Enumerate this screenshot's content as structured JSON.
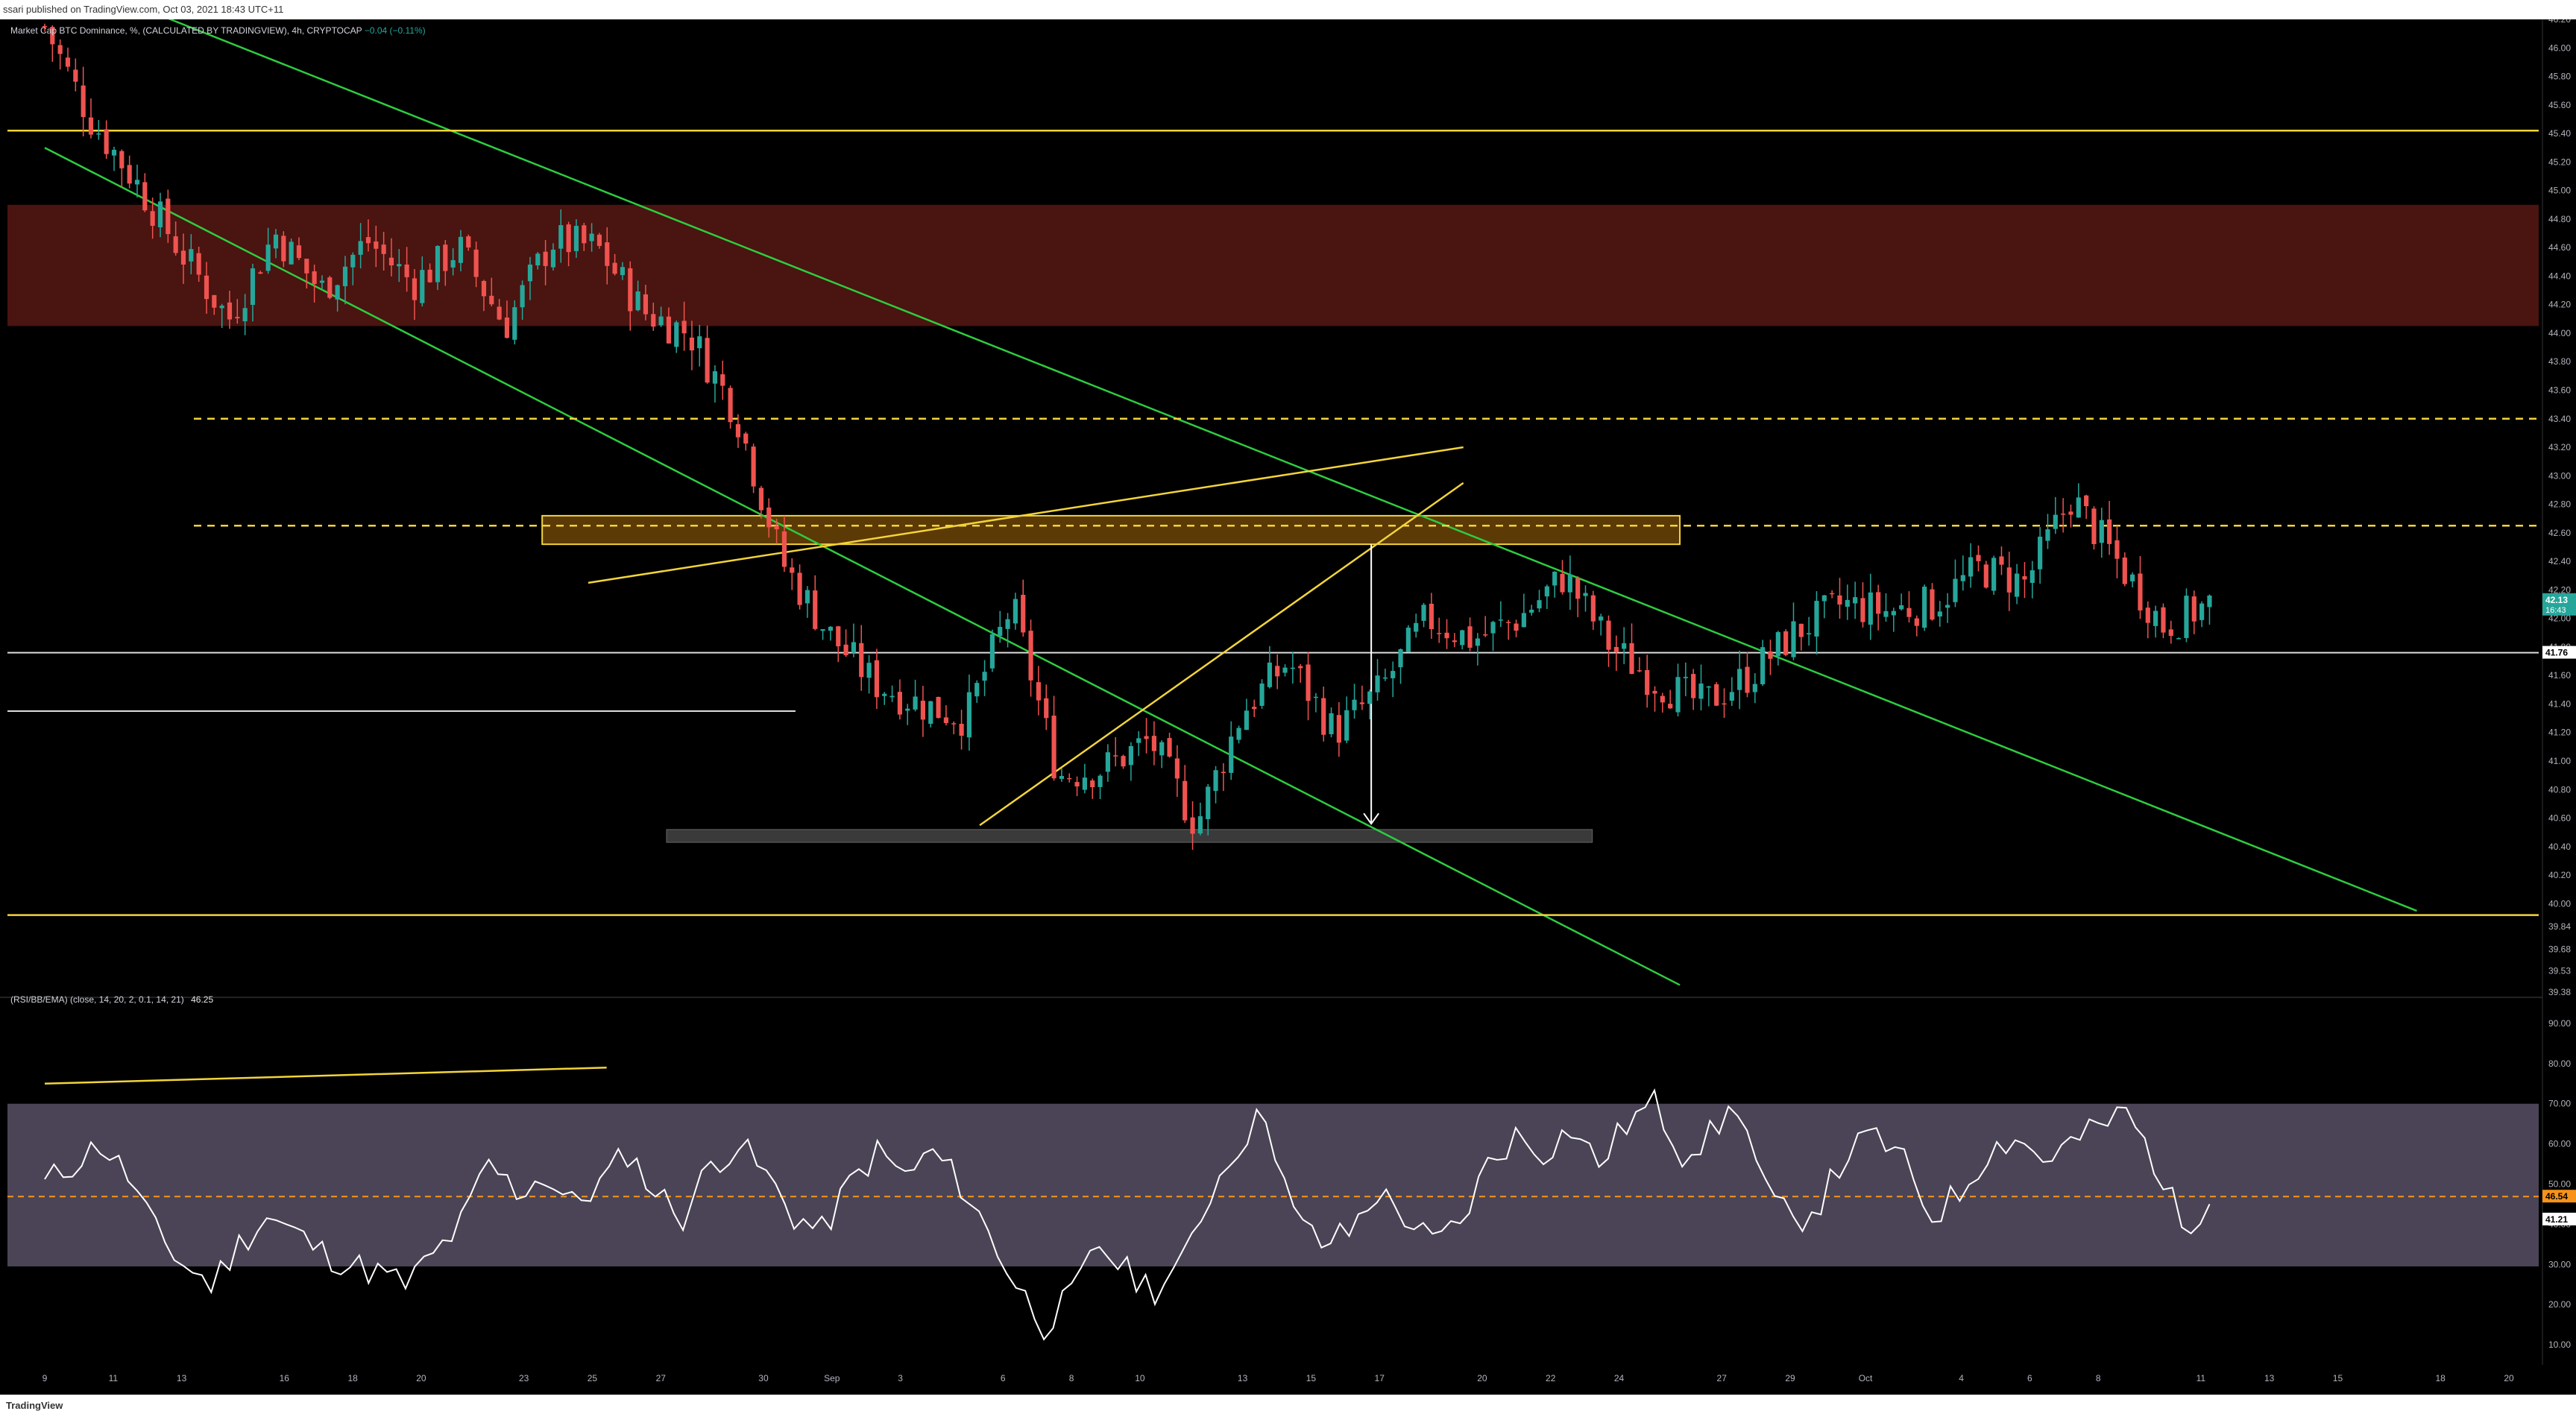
{
  "header": {
    "publish_text": "ssari published on TradingView.com, Oct 03, 2021 18:43 UTC+11"
  },
  "legend": {
    "title": "Market Cap BTC Dominance, %, (CALCULATED BY TRADINGVIEW), 4h, CRYPTOCAP",
    "change": "−0.04 (−0.11%)"
  },
  "rsi_legend": {
    "label": "(RSI/BB/EMA) (close, 14, 20, 2, 0.1, 14, 21)",
    "value": "46.25"
  },
  "footer": {
    "brand": "TradingView"
  },
  "colors": {
    "up": "#26a69a",
    "down": "#ef5350",
    "green_line": "#2ecc40",
    "yellow": "#f2d43b",
    "resistance_zone": "#4a1410",
    "orange_box": "#5c3a06",
    "grey_box": "#3a3a3a",
    "rsi_band": "#4a4456",
    "rsi_line": "#ffffff",
    "rsi_mid": "#f7931a"
  },
  "chart_data": [
    {
      "type": "candlestick",
      "title": "Market Cap BTC Dominance, %, (CALCULATED BY TRADINGVIEW), 4h, CRYPTOCAP",
      "x_tick_labels": [
        "9",
        "11",
        "13",
        "16",
        "18",
        "20",
        "23",
        "25",
        "27",
        "30",
        "Sep",
        "3",
        "6",
        "8",
        "10",
        "13",
        "15",
        "17",
        "20",
        "22",
        "24",
        "27",
        "29",
        "Oct",
        "4",
        "6",
        "8",
        "11",
        "13",
        "15",
        "18",
        "20"
      ],
      "y_tick_labels": [
        "46.20",
        "46.00",
        "45.80",
        "45.60",
        "45.40",
        "45.20",
        "45.00",
        "44.80",
        "44.60",
        "44.40",
        "44.20",
        "44.00",
        "43.80",
        "43.60",
        "43.40",
        "43.20",
        "43.00",
        "42.80",
        "42.60",
        "42.40",
        "42.20",
        "42.00",
        "41.80",
        "41.60",
        "41.40",
        "41.20",
        "41.00",
        "40.80",
        "40.60",
        "40.40",
        "40.20",
        "40.00",
        "39.84",
        "39.68",
        "39.53",
        "39.38"
      ],
      "ylim": [
        39.38,
        46.2
      ],
      "price_labels": [
        {
          "value": 42.13,
          "text": "42.13",
          "subtext": "16:43",
          "color": "#26a69a"
        },
        {
          "value": 41.76,
          "text": "41.76",
          "color": "#ffffff"
        }
      ],
      "x_days": [
        0,
        30.5
      ],
      "close_anchors": [
        [
          0.0,
          46.15
        ],
        [
          1.0,
          45.5
        ],
        [
          2.0,
          45.05
        ],
        [
          3.0,
          44.55
        ],
        [
          4.0,
          44.1
        ],
        [
          5.0,
          44.7
        ],
        [
          6.0,
          44.3
        ],
        [
          7.0,
          44.65
        ],
        [
          8.0,
          44.35
        ],
        [
          9.0,
          44.6
        ],
        [
          10.0,
          44.05
        ],
        [
          11.0,
          44.65
        ],
        [
          12.0,
          44.6
        ],
        [
          13.0,
          44.15
        ],
        [
          14.0,
          44.0
        ],
        [
          15.0,
          43.45
        ],
        [
          16.0,
          42.4
        ],
        [
          17.0,
          41.9
        ],
        [
          18.0,
          41.55
        ],
        [
          19.0,
          41.4
        ],
        [
          20.0,
          41.3
        ],
        [
          21.0,
          42.1
        ],
        [
          22.0,
          40.9
        ],
        [
          23.0,
          40.95
        ],
        [
          24.0,
          41.15
        ],
        [
          25.0,
          40.55
        ],
        [
          26.0,
          41.35
        ],
        [
          27.0,
          41.7
        ],
        [
          28.0,
          41.2
        ],
        [
          29.0,
          41.5
        ],
        [
          30.0,
          42.0
        ],
        [
          31.0,
          41.85
        ],
        [
          32.0,
          42.0
        ],
        [
          33.0,
          42.3
        ],
        [
          34.0,
          41.8
        ],
        [
          35.0,
          41.55
        ],
        [
          36.0,
          41.4
        ],
        [
          37.0,
          41.6
        ],
        [
          38.0,
          41.9
        ],
        [
          39.0,
          42.1
        ],
        [
          40.0,
          42.05
        ],
        [
          41.0,
          42.1
        ],
        [
          42.0,
          42.35
        ],
        [
          43.0,
          42.25
        ],
        [
          44.0,
          42.85
        ],
        [
          45.0,
          42.4
        ],
        [
          46.0,
          41.95
        ],
        [
          47.0,
          42.1
        ]
      ],
      "lines": [
        {
          "kind": "green_trend",
          "from": [
            0,
            46.55
          ],
          "to": [
            51.5,
            39.95
          ]
        },
        {
          "kind": "green_trend",
          "from": [
            0,
            45.3
          ],
          "to": [
            35.5,
            39.43
          ]
        },
        {
          "kind": "yellow_horizontal",
          "value": 45.42
        },
        {
          "kind": "yellow_horizontal",
          "value": 39.92
        },
        {
          "kind": "yellow_dashed",
          "value": 43.4
        },
        {
          "kind": "yellow_dashed",
          "value": 42.65
        },
        {
          "kind": "white_horizontal",
          "value": 41.76
        },
        {
          "kind": "white_horizontal",
          "value": 41.35,
          "until_day": 16.3
        },
        {
          "kind": "yellow_trend",
          "from": [
            11.8,
            42.25
          ],
          "to": [
            30.8,
            43.2
          ]
        },
        {
          "kind": "yellow_trend",
          "from": [
            20.3,
            40.55
          ],
          "to": [
            30.8,
            42.95
          ]
        }
      ],
      "zones": [
        {
          "kind": "resistance",
          "from": 44.05,
          "to": 44.9
        },
        {
          "kind": "orange_box",
          "x": [
            10.8,
            35.5
          ],
          "from": 42.52,
          "to": 42.72
        },
        {
          "kind": "grey_box",
          "x": [
            13.5,
            33.6
          ],
          "from": 40.43,
          "to": 40.52
        }
      ],
      "arrow": {
        "from": [
          28.8,
          42.52
        ],
        "to": [
          28.8,
          40.56
        ]
      }
    },
    {
      "type": "line",
      "title": "(RSI/BB/EMA) (close, 14, 20, 2, 0.1, 14, 21)",
      "y_tick_labels": [
        "90.00",
        "80.00",
        "70.00",
        "60.00",
        "50.00",
        "40.00",
        "30.00",
        "20.00",
        "10.00"
      ],
      "ylim": [
        5,
        95
      ],
      "band": [
        29.5,
        70
      ],
      "midline": 46.9,
      "value_label": "41.21",
      "ema_label": "46.54",
      "series": [
        {
          "values": [
            50,
            55,
            60,
            52,
            38,
            30,
            25,
            35,
            42,
            38,
            33,
            30,
            28,
            25,
            32,
            40,
            55,
            48,
            52,
            45,
            50,
            58,
            48,
            42,
            55,
            60,
            52,
            42,
            38,
            50,
            58,
            52,
            58,
            50,
            38,
            25,
            15,
            22,
            35,
            28,
            24,
            30,
            48,
            60,
            68,
            42,
            35,
            38,
            48,
            42,
            35,
            40,
            55,
            62,
            58,
            64,
            55,
            65,
            70,
            58,
            62,
            70,
            48,
            40,
            46,
            58,
            62,
            55,
            42,
            48,
            58,
            62,
            56,
            60,
            64,
            68,
            56,
            40,
            45
          ]
        }
      ],
      "trend": {
        "from": [
          0,
          75
        ],
        "to": [
          12.2,
          79
        ]
      }
    }
  ]
}
